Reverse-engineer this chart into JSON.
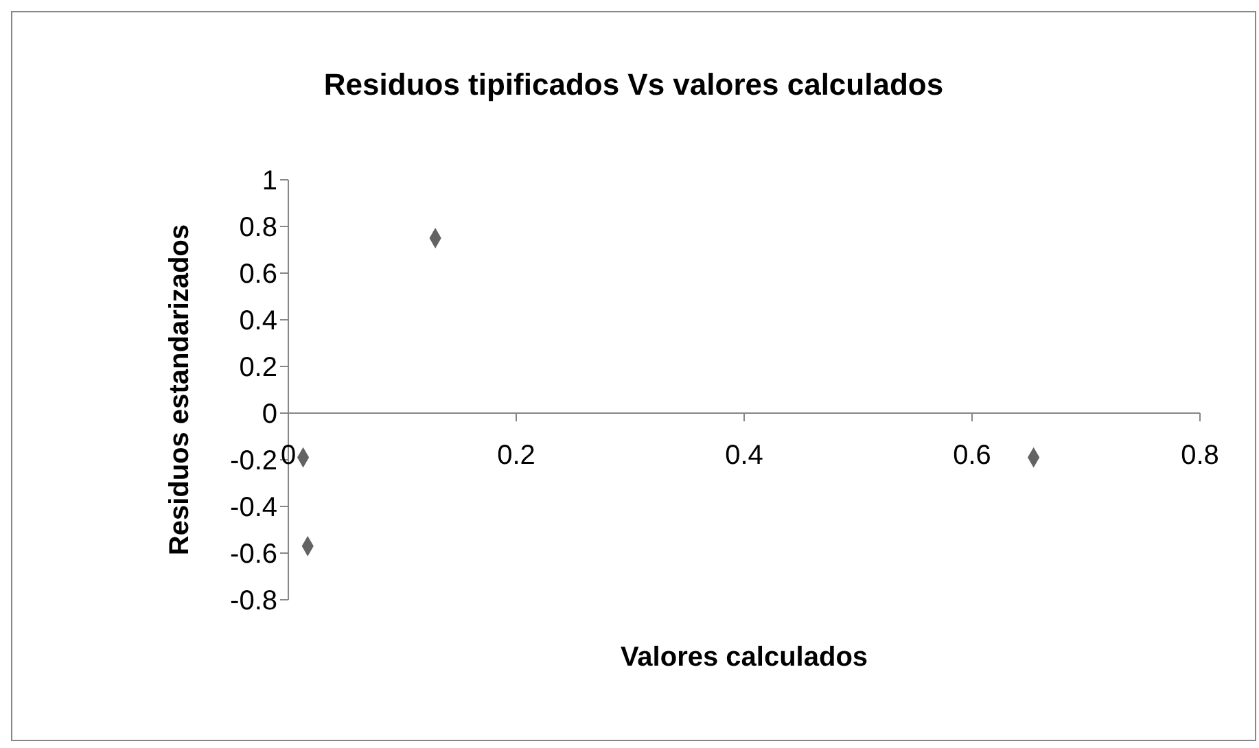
{
  "chart_data": {
    "type": "scatter",
    "title": "Residuos tipificados Vs valores calculados",
    "xlabel": "Valores calculados",
    "ylabel": "Residuos estandarizados",
    "x": [
      0.013,
      0.017,
      0.129,
      0.654
    ],
    "series": [
      {
        "color": "#636363",
        "values": [
          -0.19,
          -0.57,
          0.75,
          -0.19
        ]
      }
    ],
    "xlim": [
      0,
      0.8
    ],
    "xticks": [
      0,
      0.2,
      0.4,
      0.6,
      0.8
    ],
    "ylim": [
      -0.8,
      1
    ],
    "yticks": [
      -0.8,
      -0.6,
      -0.4,
      -0.2,
      0,
      0.2,
      0.4,
      0.6,
      0.8,
      1
    ],
    "marker": "diamond",
    "grid": false,
    "legend": false
  }
}
